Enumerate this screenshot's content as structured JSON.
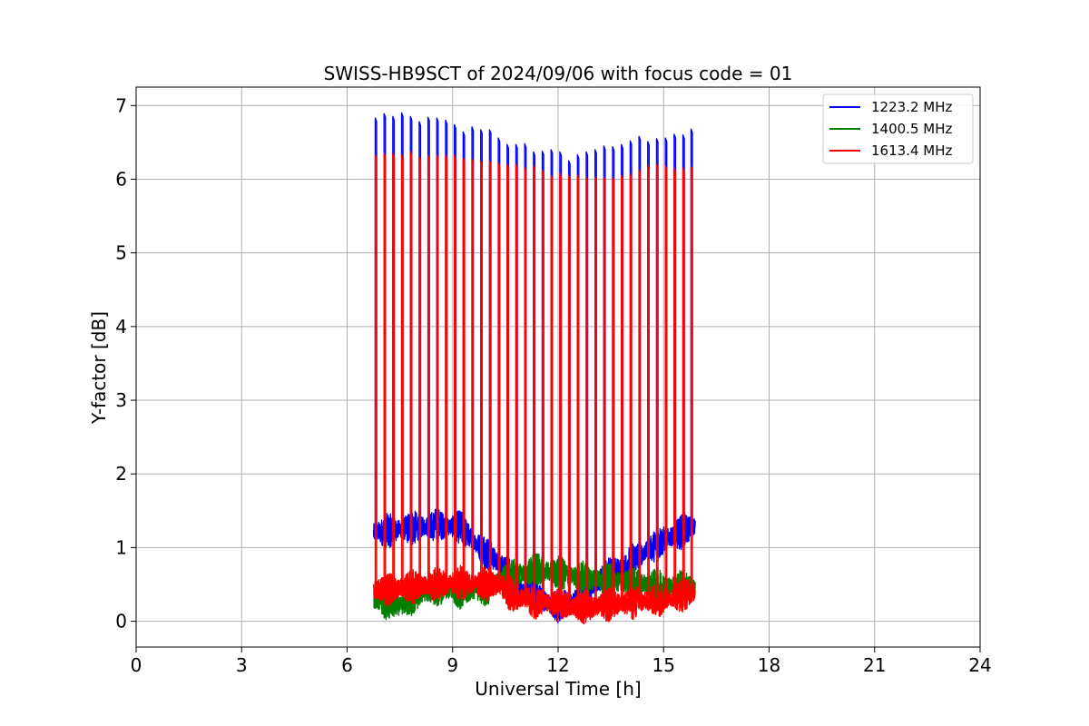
{
  "chart_data": {
    "type": "line",
    "title": "SWISS-HB9SCT of 2024/09/06 with focus code = 01",
    "xlabel": "Universal Time [h]",
    "ylabel": "Y-factor [dB]",
    "xlim": [
      0,
      24
    ],
    "ylim": [
      -0.35,
      7.25
    ],
    "xticks": [
      "0",
      "3",
      "6",
      "9",
      "12",
      "15",
      "18",
      "21",
      "24"
    ],
    "yticks": [
      "0",
      "1",
      "2",
      "3",
      "4",
      "5",
      "6",
      "7"
    ],
    "grid": true,
    "legend_position": "top-right",
    "series": [
      {
        "name": "1223.2 MHz",
        "color": "#0000ff",
        "baseline": [
          [
            6.75,
            1.2
          ],
          [
            7.5,
            1.25
          ],
          [
            8.5,
            1.3
          ],
          [
            9.2,
            1.28
          ],
          [
            9.8,
            1.0
          ],
          [
            10.3,
            0.8
          ],
          [
            11.0,
            0.4
          ],
          [
            12.0,
            0.2
          ],
          [
            12.6,
            0.3
          ],
          [
            13.0,
            0.5
          ],
          [
            14.0,
            0.8
          ],
          [
            15.0,
            1.1
          ],
          [
            15.9,
            1.3
          ]
        ],
        "spikes": [
          [
            6.8,
            6.83
          ],
          [
            7.05,
            6.89
          ],
          [
            7.3,
            6.85
          ],
          [
            7.55,
            6.9
          ],
          [
            7.8,
            6.85
          ],
          [
            8.05,
            6.78
          ],
          [
            8.3,
            6.84
          ],
          [
            8.55,
            6.83
          ],
          [
            8.8,
            6.8
          ],
          [
            9.05,
            6.74
          ],
          [
            9.3,
            6.64
          ],
          [
            9.55,
            6.71
          ],
          [
            9.8,
            6.67
          ],
          [
            10.05,
            6.67
          ],
          [
            10.3,
            6.56
          ],
          [
            10.55,
            6.47
          ],
          [
            10.8,
            6.47
          ],
          [
            11.05,
            6.48
          ],
          [
            11.3,
            6.37
          ],
          [
            11.55,
            6.38
          ],
          [
            11.8,
            6.4
          ],
          [
            12.05,
            6.37
          ],
          [
            12.3,
            6.25
          ],
          [
            12.55,
            6.33
          ],
          [
            12.8,
            6.37
          ],
          [
            13.05,
            6.4
          ],
          [
            13.3,
            6.45
          ],
          [
            13.55,
            6.44
          ],
          [
            13.8,
            6.47
          ],
          [
            14.05,
            6.52
          ],
          [
            14.3,
            6.58
          ],
          [
            14.55,
            6.51
          ],
          [
            14.8,
            6.55
          ],
          [
            15.05,
            6.56
          ],
          [
            15.3,
            6.61
          ],
          [
            15.55,
            6.6
          ],
          [
            15.78,
            6.68
          ]
        ]
      },
      {
        "name": "1400.5 MHz",
        "color": "#008000",
        "baseline": [
          [
            6.75,
            0.3
          ],
          [
            7.5,
            0.2
          ],
          [
            8.0,
            0.35
          ],
          [
            8.5,
            0.45
          ],
          [
            9.2,
            0.4
          ],
          [
            10.0,
            0.45
          ],
          [
            10.5,
            0.6
          ],
          [
            11.5,
            0.7
          ],
          [
            12.5,
            0.6
          ],
          [
            13.5,
            0.55
          ],
          [
            14.5,
            0.5
          ],
          [
            15.9,
            0.45
          ]
        ],
        "spikes": []
      },
      {
        "name": "1613.4 MHz",
        "color": "#ff0000",
        "baseline": [
          [
            6.75,
            0.42
          ],
          [
            7.5,
            0.45
          ],
          [
            8.5,
            0.5
          ],
          [
            9.2,
            0.52
          ],
          [
            10.0,
            0.5
          ],
          [
            10.4,
            0.48
          ],
          [
            10.7,
            0.35
          ],
          [
            11.5,
            0.25
          ],
          [
            12.5,
            0.2
          ],
          [
            13.0,
            0.2
          ],
          [
            14.0,
            0.25
          ],
          [
            15.0,
            0.3
          ],
          [
            15.9,
            0.4
          ]
        ],
        "spikes": [
          [
            6.8,
            6.33
          ],
          [
            7.05,
            6.35
          ],
          [
            7.3,
            6.35
          ],
          [
            7.55,
            6.33
          ],
          [
            7.8,
            6.37
          ],
          [
            8.05,
            6.3
          ],
          [
            8.3,
            6.32
          ],
          [
            8.55,
            6.33
          ],
          [
            8.8,
            6.33
          ],
          [
            9.05,
            6.32
          ],
          [
            9.3,
            6.28
          ],
          [
            9.55,
            6.27
          ],
          [
            9.8,
            6.25
          ],
          [
            10.05,
            6.25
          ],
          [
            10.3,
            6.22
          ],
          [
            10.55,
            6.2
          ],
          [
            10.8,
            6.2
          ],
          [
            11.05,
            6.15
          ],
          [
            11.3,
            6.18
          ],
          [
            11.55,
            6.12
          ],
          [
            11.8,
            6.05
          ],
          [
            12.05,
            6.08
          ],
          [
            12.3,
            6.05
          ],
          [
            12.55,
            6.05
          ],
          [
            12.8,
            6.02
          ],
          [
            13.05,
            6.03
          ],
          [
            13.3,
            6.03
          ],
          [
            13.55,
            6.03
          ],
          [
            13.8,
            6.05
          ],
          [
            14.05,
            6.07
          ],
          [
            14.3,
            6.12
          ],
          [
            14.55,
            6.18
          ],
          [
            14.8,
            6.2
          ],
          [
            15.05,
            6.18
          ],
          [
            15.3,
            6.15
          ],
          [
            15.55,
            6.15
          ],
          [
            15.78,
            6.17
          ]
        ]
      }
    ]
  }
}
